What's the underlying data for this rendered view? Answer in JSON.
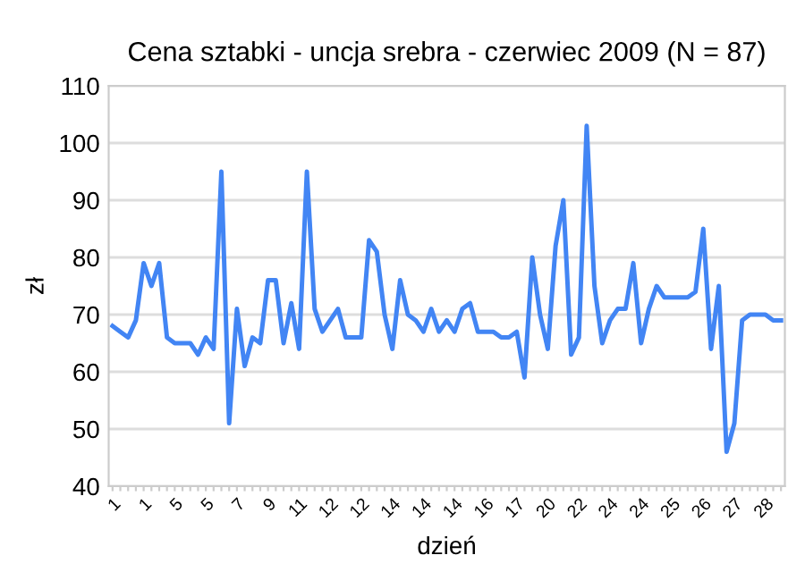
{
  "chart_data": {
    "type": "line",
    "title": "Cena sztabki - uncja srebra - czerwiec 2009 (N = 87)",
    "xlabel": "dzień",
    "ylabel": "zł",
    "categories": [
      "1",
      null,
      null,
      null,
      "1",
      null,
      null,
      null,
      "5",
      null,
      null,
      null,
      "5",
      null,
      null,
      null,
      "7",
      null,
      null,
      null,
      "9",
      null,
      null,
      null,
      "11",
      null,
      null,
      null,
      "12",
      null,
      null,
      null,
      "12",
      null,
      null,
      null,
      "14",
      null,
      null,
      null,
      "14",
      null,
      null,
      null,
      "14",
      null,
      null,
      null,
      "16",
      null,
      null,
      null,
      "17",
      null,
      null,
      null,
      "20",
      null,
      null,
      null,
      "22",
      null,
      null,
      null,
      "24",
      null,
      null,
      null,
      "24",
      null,
      null,
      null,
      "25",
      null,
      null,
      null,
      "26",
      null,
      null,
      null,
      "27",
      null,
      null,
      null,
      "28",
      null,
      null
    ],
    "series": [
      {
        "color": "#4285f4",
        "values": [
          68,
          67,
          66,
          69,
          79,
          75,
          79,
          66,
          65,
          65,
          65,
          63,
          66,
          64,
          95,
          51,
          71,
          61,
          66,
          65,
          76,
          76,
          65,
          72,
          64,
          95,
          71,
          67,
          69,
          71,
          66,
          66,
          66,
          83,
          81,
          70,
          64,
          76,
          70,
          69,
          67,
          71,
          67,
          69,
          67,
          71,
          72,
          67,
          67,
          67,
          66,
          66,
          67,
          59,
          80,
          70,
          64,
          82,
          90,
          63,
          66,
          103,
          75,
          65,
          69,
          71,
          71,
          79,
          65,
          71,
          75,
          73,
          73,
          73,
          73,
          74,
          85,
          64,
          75,
          46,
          51,
          69,
          70,
          70,
          70,
          69,
          69
        ]
      }
    ],
    "ylim": [
      40,
      110
    ],
    "yticks": [
      40,
      50,
      60,
      70,
      80,
      90,
      100,
      110
    ],
    "grid": "y",
    "marker": "none",
    "line_style": "solid"
  }
}
